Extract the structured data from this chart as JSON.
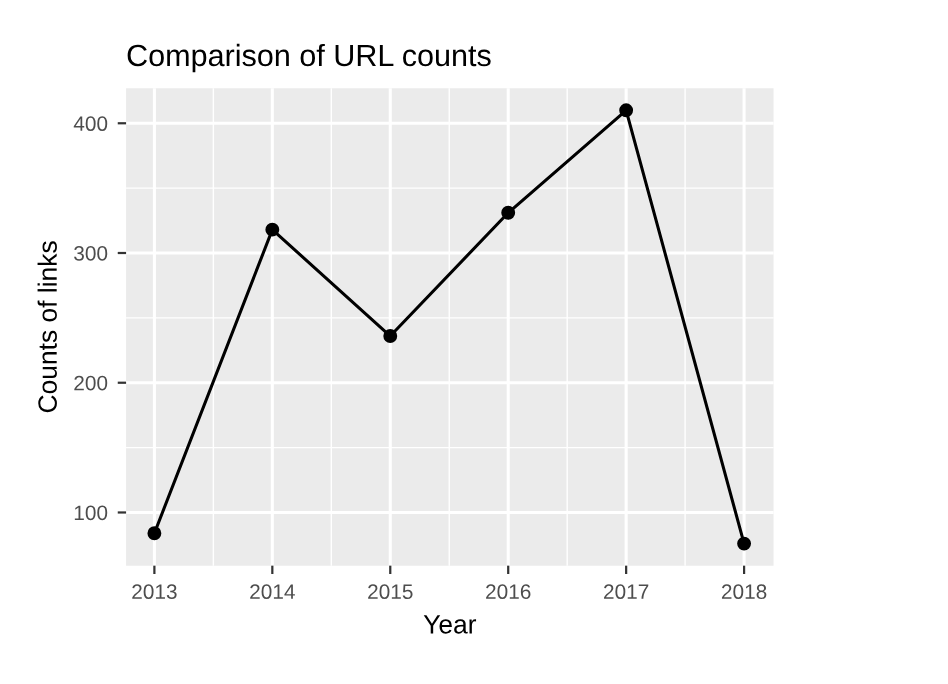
{
  "chart_data": {
    "type": "line",
    "title": "Comparison of URL counts",
    "xlabel": "Year",
    "ylabel": "Counts of links",
    "x": [
      2013,
      2014,
      2015,
      2016,
      2017,
      2018
    ],
    "series": [
      {
        "color": "#000000",
        "values": [
          84,
          318,
          236,
          331,
          410,
          76
        ]
      }
    ],
    "xlim": [
      2012.76,
      2018.25
    ],
    "xticks": [
      2013,
      2014,
      2015,
      2016,
      2017,
      2018
    ],
    "ylim": [
      59,
      427
    ],
    "yticks": [
      100,
      200,
      300,
      400
    ],
    "grid": true,
    "marker": "circle",
    "line_style": "solid"
  }
}
